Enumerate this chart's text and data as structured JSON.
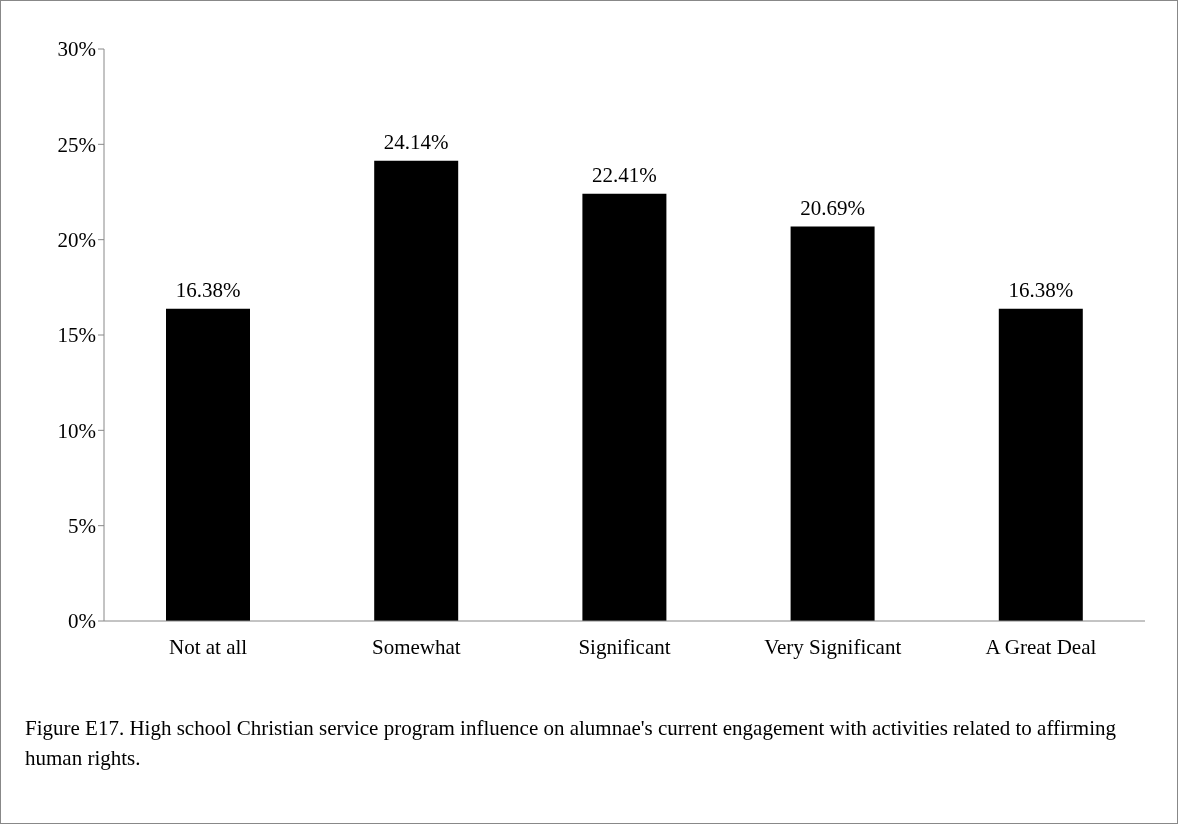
{
  "chart_data": {
    "type": "bar",
    "categories": [
      "Not at all",
      "Somewhat",
      "Significant",
      "Very Significant",
      "A Great Deal"
    ],
    "values": [
      16.38,
      24.14,
      22.41,
      20.69,
      16.38
    ],
    "value_labels": [
      "16.38%",
      "24.14%",
      "22.41%",
      "20.69%",
      "16.38%"
    ],
    "color": "#000000",
    "ylim": [
      0,
      30
    ],
    "yticks": [
      {
        "value": 0,
        "label": "0%"
      },
      {
        "value": 5,
        "label": "5%"
      },
      {
        "value": 10,
        "label": "10%"
      },
      {
        "value": 15,
        "label": "15%"
      },
      {
        "value": 20,
        "label": "20%"
      },
      {
        "value": 25,
        "label": "25%"
      },
      {
        "value": 30,
        "label": "30%"
      }
    ],
    "grid": false,
    "legend": false,
    "annotations": [
      "Figure E17. High school Christian service program influence on alumnae's current engagement with activities related to affirming human rights."
    ]
  }
}
